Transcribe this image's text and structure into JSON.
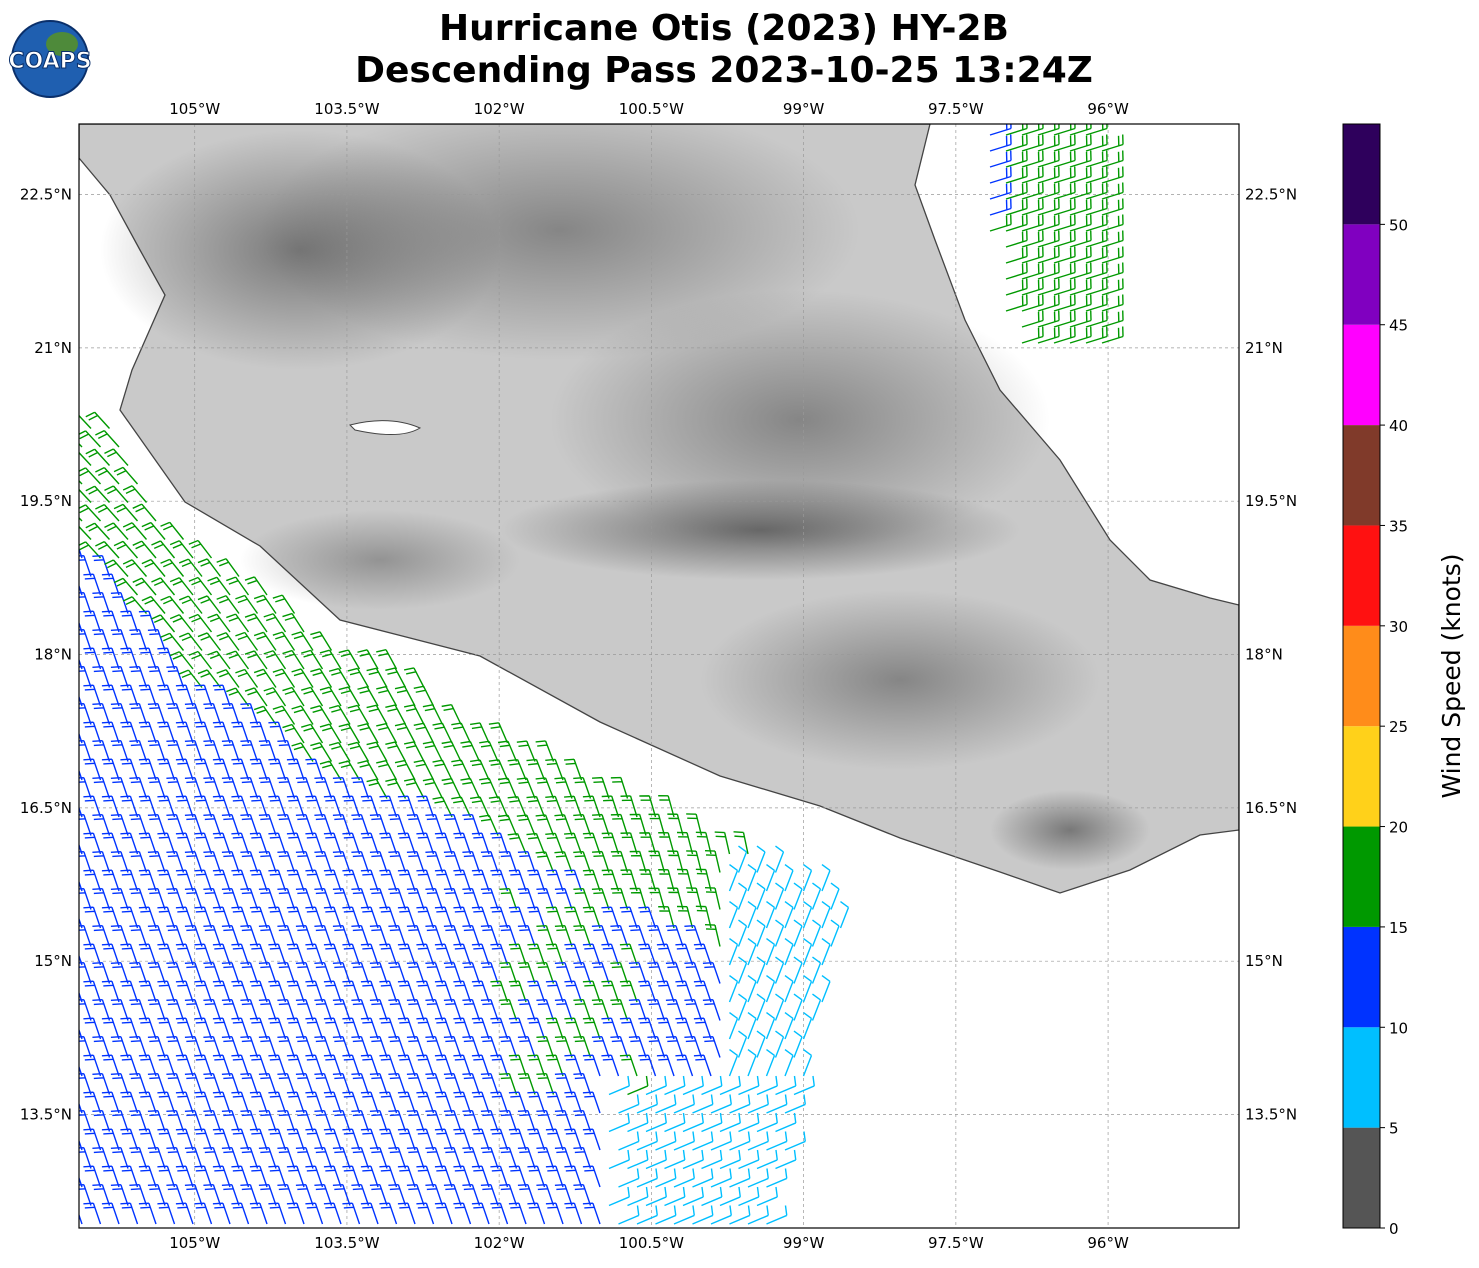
{
  "chart_data": {
    "type": "map",
    "title": [
      "Hurricane Otis (2023) HY-2B",
      "Descending Pass 2023-10-25 13:24Z"
    ],
    "logo": "COAPS",
    "xlim": [
      -106.14,
      -94.71
    ],
    "ylim": [
      12.39,
      23.19
    ],
    "xticks": [
      {
        "value": -105,
        "label": "105°W"
      },
      {
        "value": -103.5,
        "label": "103.5°W"
      },
      {
        "value": -102,
        "label": "102°W"
      },
      {
        "value": -100.5,
        "label": "100.5°W"
      },
      {
        "value": -99,
        "label": "99°W"
      },
      {
        "value": -97.5,
        "label": "97.5°W"
      },
      {
        "value": -96,
        "label": "96°W"
      }
    ],
    "yticks": [
      {
        "value": 22.5,
        "label": "22.5°N"
      },
      {
        "value": 21,
        "label": "21°N"
      },
      {
        "value": 19.5,
        "label": "19.5°N"
      },
      {
        "value": 18,
        "label": "18°N"
      },
      {
        "value": 16.5,
        "label": "16.5°N"
      },
      {
        "value": 15,
        "label": "15°N"
      },
      {
        "value": 13.5,
        "label": "13.5°N"
      }
    ],
    "grid": true,
    "colorbar": {
      "label": "Wind Speed (knots)",
      "lim": [
        0,
        55
      ],
      "ticks": [
        0,
        5,
        10,
        15,
        20,
        25,
        30,
        35,
        40,
        45,
        50
      ],
      "colors": [
        "#555555",
        "#00bfff",
        "#0033ff",
        "#009900",
        "#ffd11a",
        "#ff8c1a",
        "#ff1111",
        "#803a2a",
        "#ff00ff",
        "#8000c0",
        "#2e005c"
      ]
    }
  }
}
